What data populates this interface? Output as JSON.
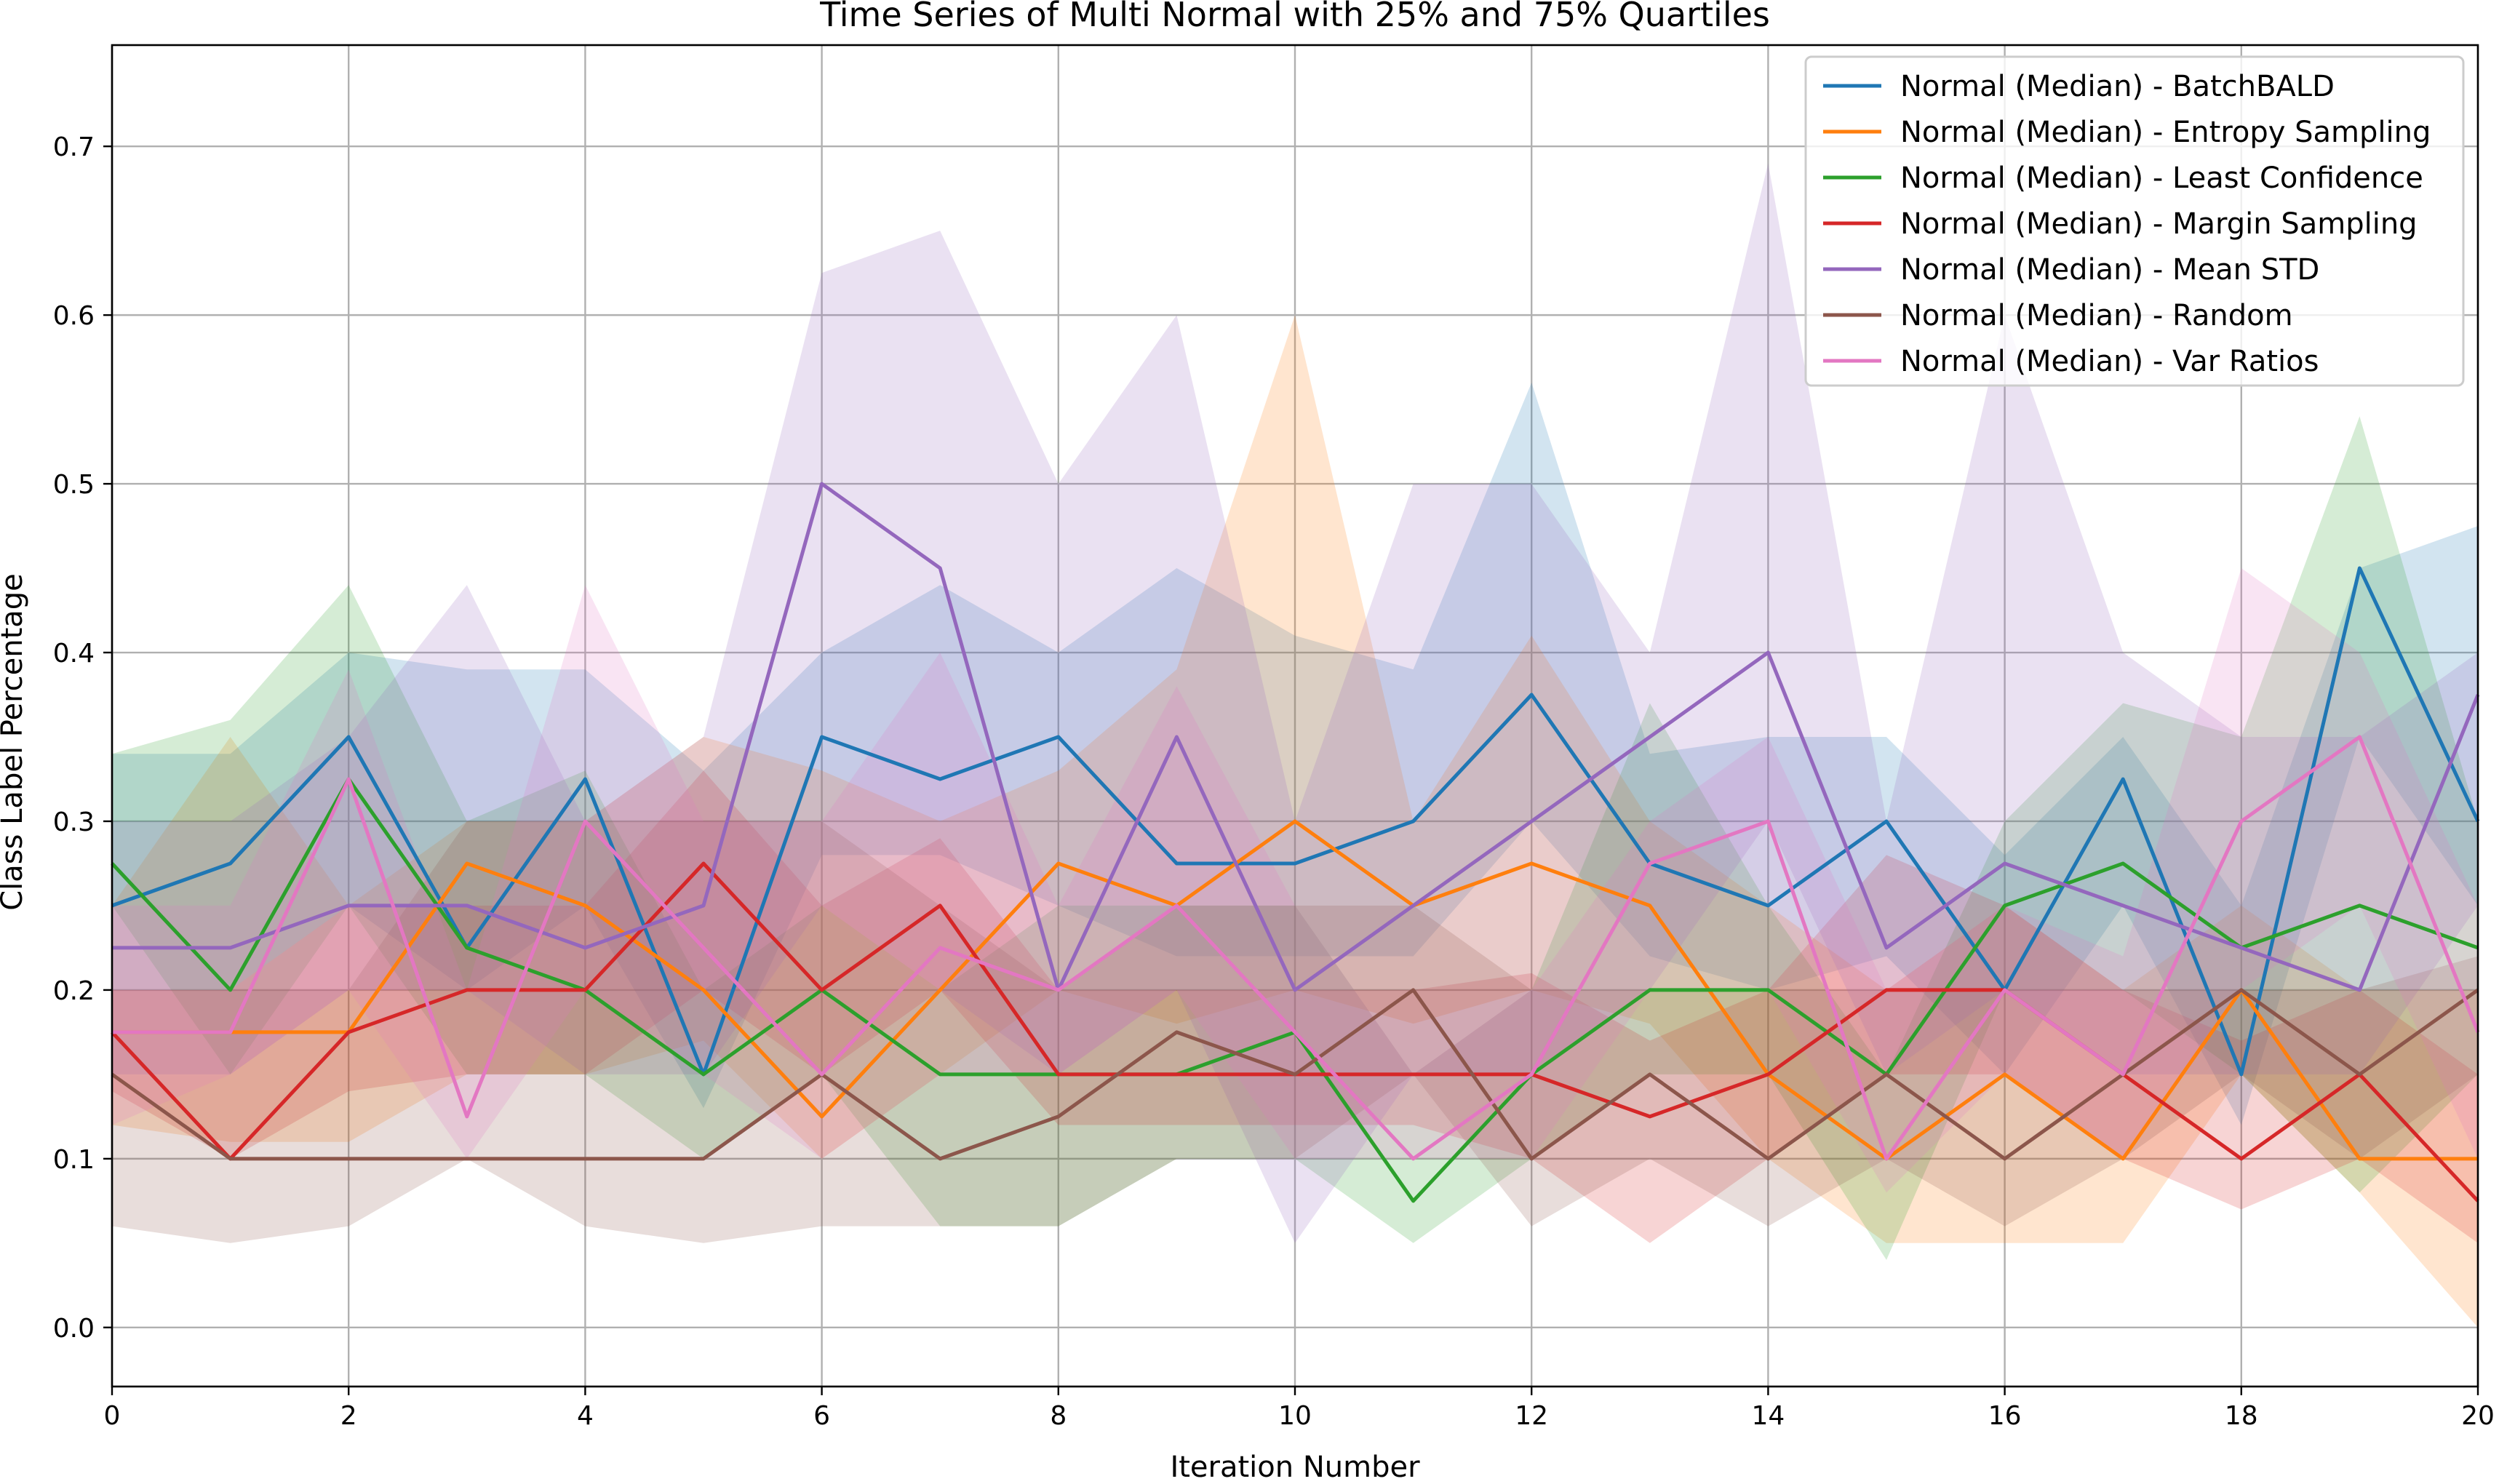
{
  "chart_data": {
    "type": "line",
    "title": "Time Series of Multi Normal with 25% and 75% Quartiles",
    "xlabel": "Iteration Number",
    "ylabel": "Class Label Percentage",
    "xlim": [
      0,
      20
    ],
    "ylim": [
      -0.035,
      0.76
    ],
    "xticks": [
      0,
      2,
      4,
      6,
      8,
      10,
      12,
      14,
      16,
      18,
      20
    ],
    "xtick_labels": [
      "0",
      "2",
      "4",
      "6",
      "8",
      "10",
      "12",
      "14",
      "16",
      "18",
      "20"
    ],
    "yticks": [
      0.0,
      0.1,
      0.2,
      0.3,
      0.4,
      0.5,
      0.6,
      0.7
    ],
    "ytick_labels": [
      "0.0",
      "0.1",
      "0.2",
      "0.3",
      "0.4",
      "0.5",
      "0.6",
      "0.7"
    ],
    "grid": true,
    "legend_position": "top-right",
    "x": [
      0,
      1,
      2,
      3,
      4,
      5,
      6,
      7,
      8,
      9,
      10,
      11,
      12,
      13,
      14,
      15,
      16,
      17,
      18,
      19,
      20
    ],
    "series": [
      {
        "name": "Normal (Median) - BatchBALD",
        "color": "#1f77b4",
        "median": [
          0.25,
          0.275,
          0.35,
          0.225,
          0.325,
          0.15,
          0.35,
          0.325,
          0.35,
          0.275,
          0.275,
          0.3,
          0.375,
          0.275,
          0.25,
          0.3,
          0.2,
          0.325,
          0.15,
          0.45,
          0.3
        ],
        "q25": [
          0.2,
          0.2,
          0.25,
          0.2,
          0.25,
          0.13,
          0.28,
          0.28,
          0.25,
          0.22,
          0.22,
          0.22,
          0.3,
          0.22,
          0.2,
          0.22,
          0.15,
          0.25,
          0.12,
          0.35,
          0.25
        ],
        "q75": [
          0.34,
          0.34,
          0.4,
          0.39,
          0.39,
          0.33,
          0.4,
          0.44,
          0.4,
          0.45,
          0.41,
          0.39,
          0.56,
          0.34,
          0.35,
          0.35,
          0.28,
          0.35,
          0.25,
          0.45,
          0.475
        ]
      },
      {
        "name": "Normal (Median) - Entropy Sampling",
        "color": "#ff7f0e",
        "median": [
          0.175,
          0.175,
          0.175,
          0.275,
          0.25,
          0.2,
          0.125,
          0.2,
          0.275,
          0.25,
          0.3,
          0.25,
          0.275,
          0.25,
          0.15,
          0.1,
          0.15,
          0.1,
          0.2,
          0.1,
          0.1
        ],
        "q25": [
          0.12,
          0.11,
          0.11,
          0.15,
          0.15,
          0.17,
          0.1,
          0.15,
          0.2,
          0.18,
          0.2,
          0.18,
          0.2,
          0.18,
          0.1,
          0.05,
          0.05,
          0.05,
          0.15,
          0.08,
          0.0
        ],
        "q75": [
          0.25,
          0.35,
          0.25,
          0.3,
          0.3,
          0.35,
          0.33,
          0.3,
          0.33,
          0.39,
          0.6,
          0.3,
          0.41,
          0.3,
          0.25,
          0.2,
          0.25,
          0.2,
          0.25,
          0.2,
          0.2
        ]
      },
      {
        "name": "Normal (Median) - Least Confidence",
        "color": "#2ca02c",
        "median": [
          0.275,
          0.2,
          0.325,
          0.225,
          0.2,
          0.15,
          0.2,
          0.15,
          0.15,
          0.15,
          0.175,
          0.075,
          0.15,
          0.2,
          0.2,
          0.15,
          0.25,
          0.275,
          0.225,
          0.25,
          0.225
        ],
        "q25": [
          0.25,
          0.15,
          0.25,
          0.15,
          0.15,
          0.1,
          0.15,
          0.06,
          0.06,
          0.1,
          0.1,
          0.05,
          0.1,
          0.15,
          0.15,
          0.04,
          0.2,
          0.2,
          0.15,
          0.08,
          0.15
        ],
        "q75": [
          0.34,
          0.36,
          0.44,
          0.3,
          0.33,
          0.2,
          0.25,
          0.2,
          0.25,
          0.25,
          0.25,
          0.15,
          0.2,
          0.37,
          0.25,
          0.15,
          0.3,
          0.37,
          0.35,
          0.54,
          0.3
        ]
      },
      {
        "name": "Normal (Median) - Margin Sampling",
        "color": "#d62728",
        "median": [
          0.175,
          0.1,
          0.175,
          0.2,
          0.2,
          0.275,
          0.2,
          0.25,
          0.15,
          0.15,
          0.15,
          0.15,
          0.15,
          0.125,
          0.15,
          0.2,
          0.2,
          0.15,
          0.1,
          0.15,
          0.075
        ],
        "q25": [
          0.14,
          0.1,
          0.14,
          0.15,
          0.15,
          0.2,
          0.15,
          0.2,
          0.12,
          0.12,
          0.12,
          0.12,
          0.1,
          0.05,
          0.1,
          0.15,
          0.15,
          0.1,
          0.07,
          0.1,
          0.05
        ],
        "q75": [
          0.2,
          0.2,
          0.25,
          0.25,
          0.25,
          0.33,
          0.25,
          0.29,
          0.2,
          0.2,
          0.2,
          0.2,
          0.21,
          0.17,
          0.2,
          0.28,
          0.25,
          0.2,
          0.17,
          0.2,
          0.15
        ]
      },
      {
        "name": "Normal (Median) - Mean STD",
        "color": "#9467bd",
        "median": [
          0.225,
          0.225,
          0.25,
          0.25,
          0.225,
          0.25,
          0.5,
          0.45,
          0.2,
          0.35,
          0.2,
          0.25,
          0.3,
          0.35,
          0.4,
          0.225,
          0.275,
          0.25,
          0.225,
          0.2,
          0.375
        ],
        "q25": [
          0.15,
          0.15,
          0.2,
          0.2,
          0.15,
          0.15,
          0.25,
          0.2,
          0.15,
          0.2,
          0.05,
          0.15,
          0.15,
          0.2,
          0.3,
          0.15,
          0.2,
          0.15,
          0.15,
          0.15,
          0.25
        ],
        "q75": [
          0.3,
          0.3,
          0.35,
          0.44,
          0.3,
          0.35,
          0.625,
          0.65,
          0.5,
          0.6,
          0.3,
          0.5,
          0.5,
          0.4,
          0.69,
          0.3,
          0.6,
          0.4,
          0.35,
          0.35,
          0.4
        ]
      },
      {
        "name": "Normal (Median) - Random",
        "color": "#8c564b",
        "median": [
          0.15,
          0.1,
          0.1,
          0.1,
          0.1,
          0.1,
          0.15,
          0.1,
          0.125,
          0.175,
          0.15,
          0.2,
          0.1,
          0.15,
          0.1,
          0.15,
          0.1,
          0.15,
          0.2,
          0.15,
          0.2
        ],
        "q25": [
          0.06,
          0.05,
          0.06,
          0.1,
          0.06,
          0.05,
          0.06,
          0.06,
          0.06,
          0.1,
          0.1,
          0.15,
          0.06,
          0.1,
          0.06,
          0.1,
          0.06,
          0.1,
          0.15,
          0.1,
          0.15
        ],
        "q75": [
          0.2,
          0.2,
          0.2,
          0.3,
          0.3,
          0.3,
          0.3,
          0.25,
          0.2,
          0.25,
          0.25,
          0.25,
          0.2,
          0.2,
          0.2,
          0.2,
          0.2,
          0.2,
          0.2,
          0.2,
          0.22
        ]
      },
      {
        "name": "Normal (Median) - Var Ratios",
        "color": "#e377c2",
        "median": [
          0.175,
          0.175,
          0.325,
          0.125,
          0.3,
          0.225,
          0.15,
          0.225,
          0.2,
          0.25,
          0.175,
          0.1,
          0.15,
          0.275,
          0.3,
          0.1,
          0.2,
          0.15,
          0.3,
          0.35,
          0.175
        ],
        "q25": [
          0.12,
          0.15,
          0.2,
          0.1,
          0.2,
          0.15,
          0.1,
          0.15,
          0.15,
          0.2,
          0.1,
          0.1,
          0.1,
          0.2,
          0.2,
          0.08,
          0.15,
          0.1,
          0.2,
          0.25,
          0.1
        ],
        "q75": [
          0.25,
          0.25,
          0.39,
          0.2,
          0.44,
          0.3,
          0.3,
          0.4,
          0.25,
          0.38,
          0.25,
          0.15,
          0.2,
          0.3,
          0.35,
          0.2,
          0.25,
          0.22,
          0.45,
          0.4,
          0.25
        ]
      }
    ]
  }
}
